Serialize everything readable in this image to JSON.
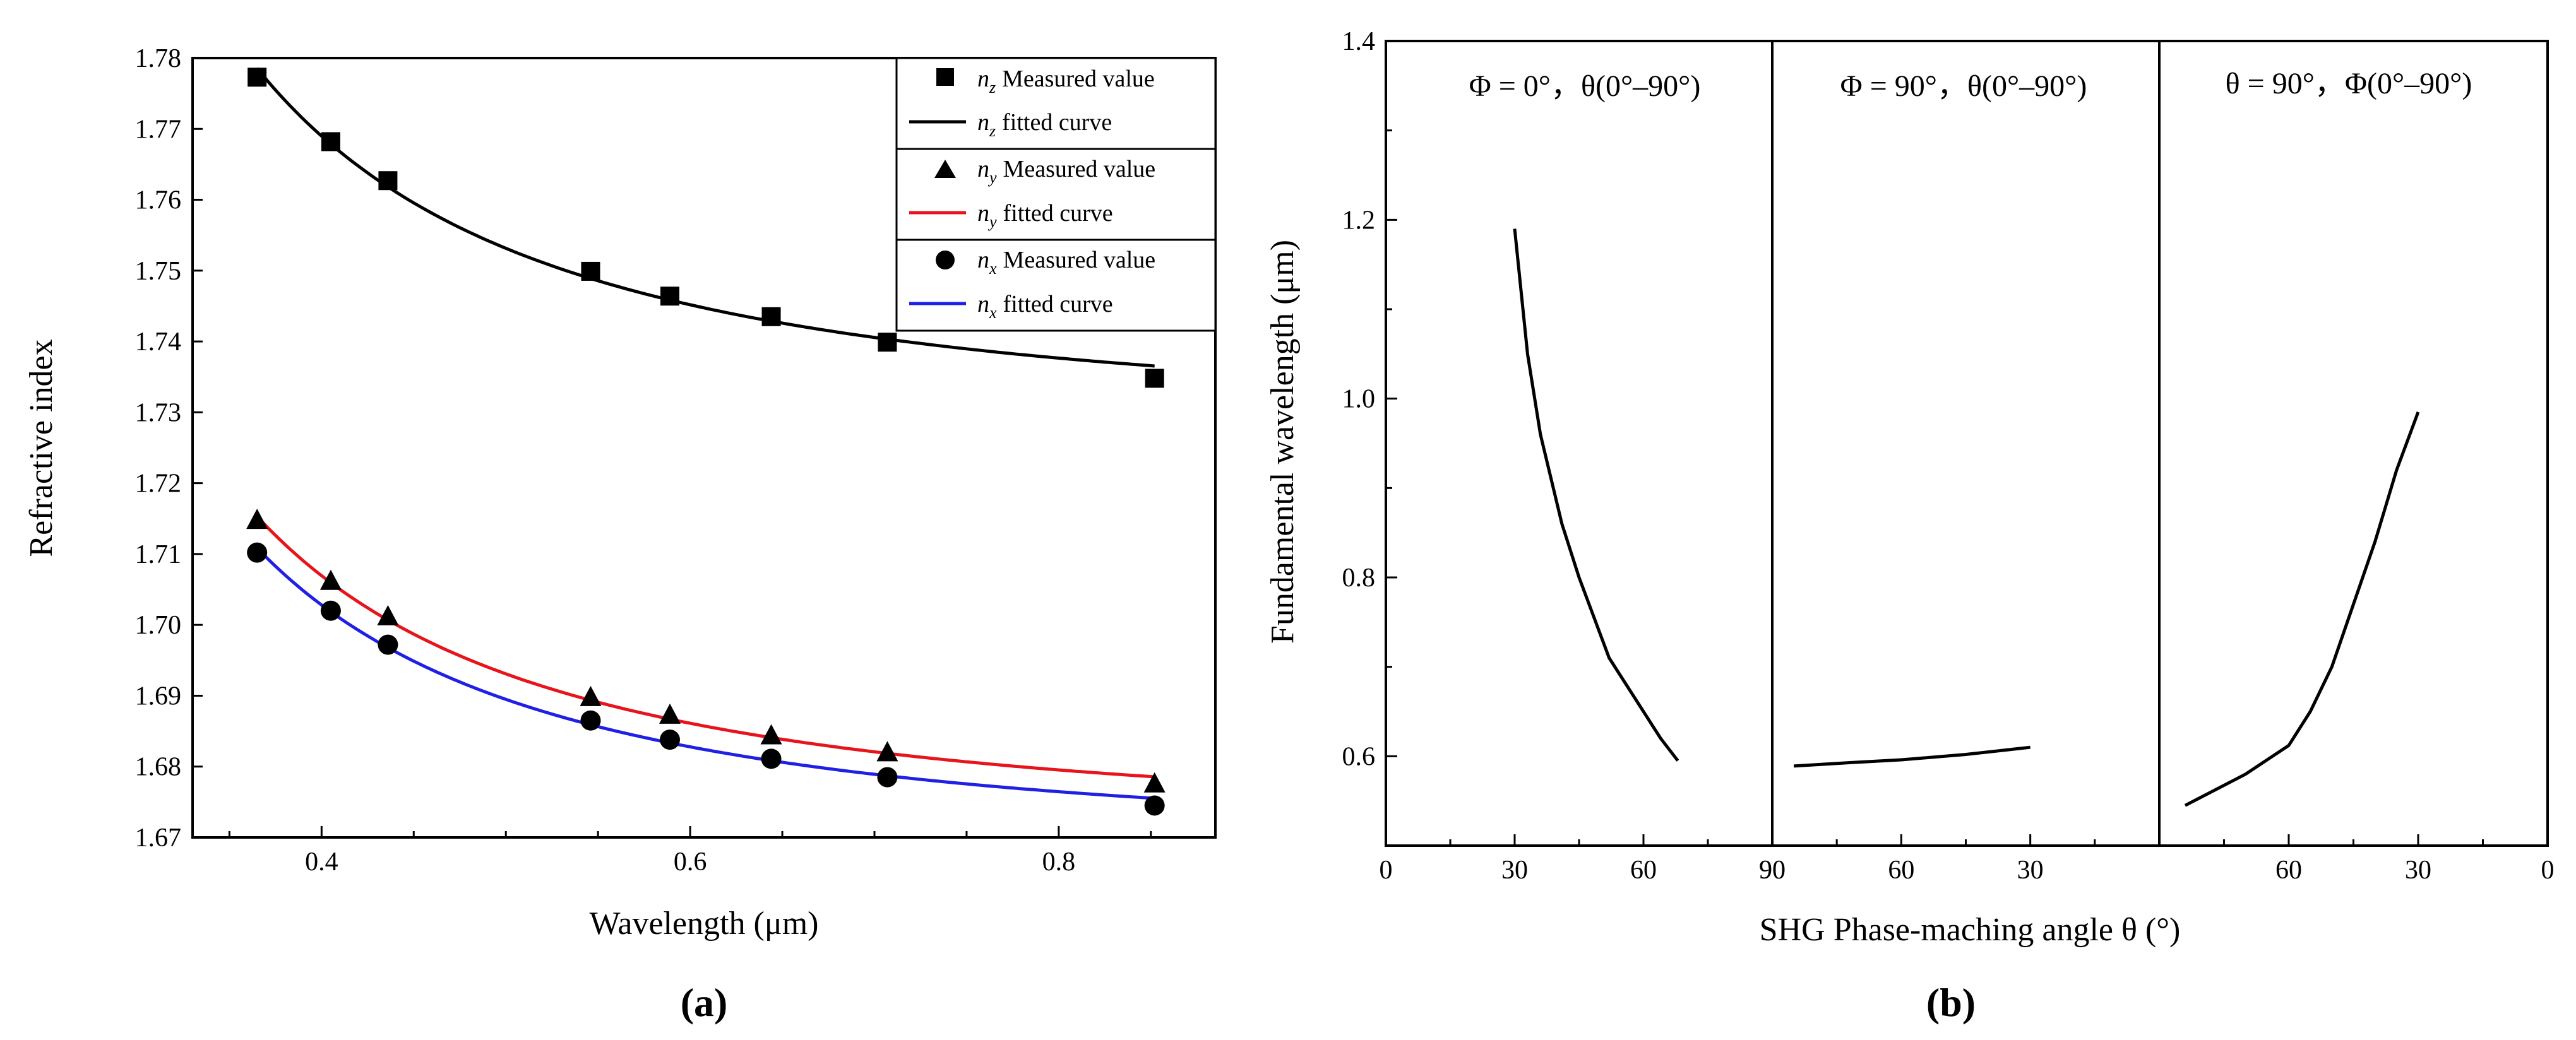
{
  "chart_data": [
    {
      "type": "scatter",
      "panel_label": "(a)",
      "xlabel": "Wavelength (μm)",
      "ylabel": "Refractive index",
      "xlim": [
        0.33,
        0.885
      ],
      "ylim": [
        1.67,
        1.78
      ],
      "xticks": [
        0.4,
        0.6,
        0.8
      ],
      "xtick_labels": [
        "0.4",
        "0.6",
        "0.8"
      ],
      "yticks": [
        1.67,
        1.68,
        1.69,
        1.7,
        1.71,
        1.72,
        1.73,
        1.74,
        1.75,
        1.76,
        1.77,
        1.78
      ],
      "ytick_labels": [
        "1.67",
        "1.68",
        "1.69",
        "1.70",
        "1.71",
        "1.72",
        "1.73",
        "1.74",
        "1.75",
        "1.76",
        "1.77",
        "1.78"
      ],
      "legend_position": "top-right",
      "series": [
        {
          "name": "nz",
          "symbol": "n",
          "sub": "z",
          "marker": "square",
          "line_color": "#000000",
          "measured_label": "Measured value",
          "fit_label": "fitted curve",
          "x": [
            0.365,
            0.405,
            0.436,
            0.546,
            0.589,
            0.644,
            0.707,
            0.852
          ],
          "y": [
            1.7773,
            1.7682,
            1.7627,
            1.7499,
            1.7464,
            1.7435,
            1.7399,
            1.7348
          ]
        },
        {
          "name": "ny",
          "symbol": "n",
          "sub": "y",
          "marker": "triangle",
          "line_color": "#e8141b",
          "measured_label": "Measured value",
          "fit_label": "fitted curve",
          "x": [
            0.365,
            0.405,
            0.436,
            0.546,
            0.589,
            0.644,
            0.707,
            0.852
          ],
          "y": [
            1.7147,
            1.7061,
            1.7011,
            1.6897,
            1.6872,
            1.6843,
            1.6819,
            1.6775
          ]
        },
        {
          "name": "nx",
          "symbol": "n",
          "sub": "x",
          "marker": "circle",
          "line_color": "#1f1fe6",
          "measured_label": "Measured value",
          "fit_label": "fitted curve",
          "x": [
            0.365,
            0.405,
            0.436,
            0.546,
            0.589,
            0.644,
            0.707,
            0.852
          ],
          "y": [
            1.7102,
            1.702,
            1.6972,
            1.6865,
            1.6838,
            1.6811,
            1.6785,
            1.6745
          ]
        }
      ]
    },
    {
      "type": "line",
      "panel_label": "(b)",
      "xlabel": "SHG Phase-maching angle θ (°)",
      "ylabel": "Fundamental  wavelength (μm)",
      "ylim": [
        0.5,
        1.4
      ],
      "yticks": [
        0.6,
        0.8,
        1.0,
        1.2,
        1.4
      ],
      "ytick_labels": [
        "0.6",
        "0.8",
        "1.0",
        "1.2",
        "1.4"
      ],
      "line_color": "#000000",
      "segments": [
        {
          "label": "Φ = 0°，θ(0°–90°)",
          "xlim": [
            0,
            90
          ],
          "xticks": [
            0,
            30,
            60,
            90
          ],
          "xtick_labels": [
            "0",
            "30",
            "60",
            "90"
          ],
          "points": [
            [
              30,
              1.19
            ],
            [
              33,
              1.05
            ],
            [
              36,
              0.96
            ],
            [
              41,
              0.86
            ],
            [
              45,
              0.8
            ],
            [
              52,
              0.71
            ],
            [
              60,
              0.65
            ],
            [
              64,
              0.62
            ],
            [
              68,
              0.595
            ]
          ]
        },
        {
          "label": "Φ = 90°，θ(0°–90°)",
          "xlim": [
            90,
            0
          ],
          "xticks": [
            90,
            60,
            30
          ],
          "xtick_labels": [
            "90",
            "60",
            "30"
          ],
          "points": [
            [
              30,
              0.61
            ],
            [
              45,
              0.602
            ],
            [
              60,
              0.596
            ],
            [
              75,
              0.592
            ],
            [
              85,
              0.589
            ]
          ]
        },
        {
          "label": "θ = 90°，Φ(0°–90°)",
          "xlim": [
            90,
            0
          ],
          "xticks": [
            60,
            30,
            0
          ],
          "xtick_labels": [
            "60",
            "30",
            "0"
          ],
          "points": [
            [
              84,
              0.545
            ],
            [
              70,
              0.58
            ],
            [
              60,
              0.612
            ],
            [
              55,
              0.65
            ],
            [
              50,
              0.7
            ],
            [
              45,
              0.77
            ],
            [
              40,
              0.84
            ],
            [
              35,
              0.92
            ],
            [
              30,
              0.985
            ]
          ]
        }
      ]
    }
  ]
}
